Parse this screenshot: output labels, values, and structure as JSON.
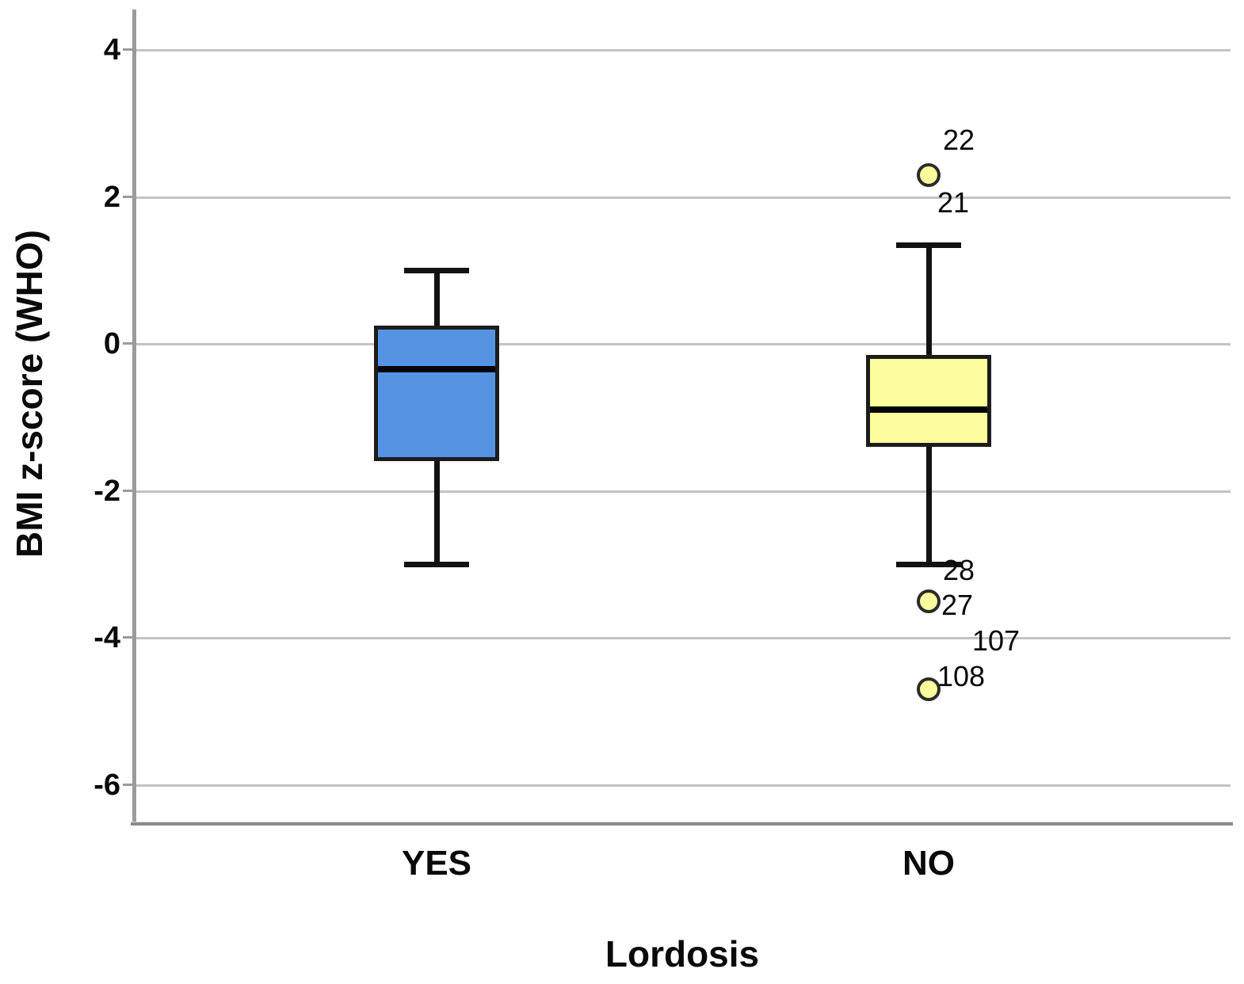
{
  "chart_data": {
    "type": "boxplot",
    "title": "",
    "xlabel": "Lordosis",
    "ylabel": "BMI z-score (WHO)",
    "yticks": [
      4,
      2,
      0,
      -2,
      -4,
      -6
    ],
    "ylim": [
      -6.9,
      4.6
    ],
    "grid": "horizontal-gridlines-on",
    "legend": "none",
    "categories": [
      "YES",
      "NO"
    ],
    "series": [
      {
        "category": "YES",
        "box_color": "#5593E3",
        "whisker_low": -3.0,
        "q1": -1.6,
        "median": -0.35,
        "q3": 0.25,
        "whisker_high": 1.0,
        "outliers": [],
        "case_labels": []
      },
      {
        "category": "NO",
        "box_color": "#FDFD9D",
        "whisker_low": -3.0,
        "q1": -1.4,
        "median": -0.9,
        "q3": -0.15,
        "whisker_high": 1.35,
        "outliers": [
          2.3,
          -3.5,
          -4.7
        ],
        "case_labels": [
          {
            "text": "22",
            "at_value": 2.77,
            "dx": 18
          },
          {
            "text": "21",
            "at_value": 1.92,
            "dx": 11
          },
          {
            "text": "28",
            "at_value": -3.08,
            "dx": 18
          },
          {
            "text": "27",
            "at_value": -3.56,
            "dx": 16
          },
          {
            "text": "107",
            "at_value": -4.04,
            "dx": 55
          },
          {
            "text": "108",
            "at_value": -4.53,
            "dx": 11
          }
        ]
      }
    ],
    "colors": {
      "outlier_fill": "#FBFB9B",
      "box_border": "#1c1c1c",
      "median": "#050505",
      "gridline": "#c3c3c3",
      "axis_line": "#9a9a9a",
      "text": "#0a0a0a"
    }
  }
}
